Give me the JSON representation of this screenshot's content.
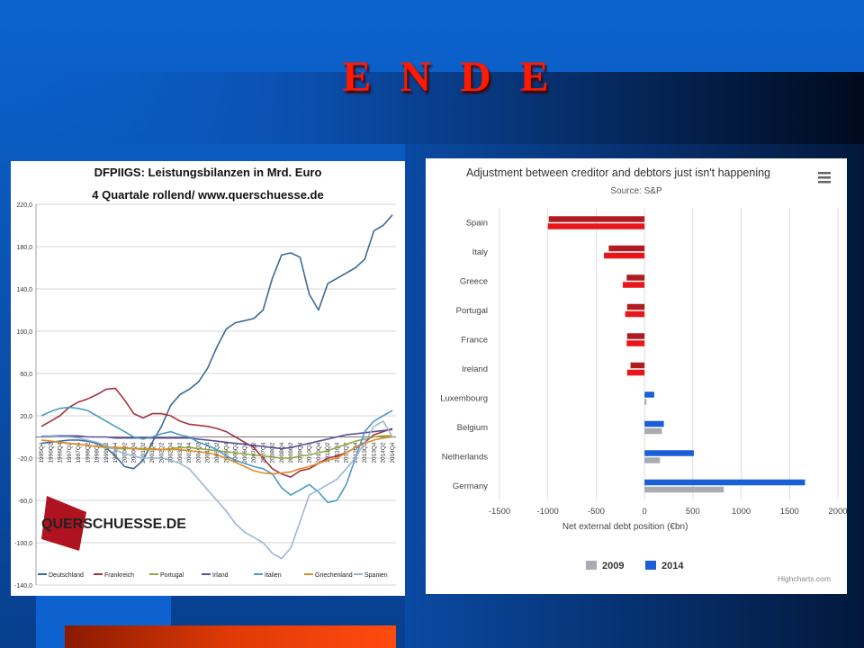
{
  "slide": {
    "title": "E N D E"
  },
  "colors": {
    "deutschland": "#3d6a93",
    "frankreich": "#a3333c",
    "portugal": "#94a843",
    "irland": "#5a4f9a",
    "italien": "#4a9bc0",
    "griechenland": "#e08a2c",
    "spanien": "#9cb6d6",
    "bar2009": "#a9abb4",
    "bar2014": "#1b5fd6",
    "creditor2009": "#b01b20",
    "creditor2014": "#e8161b"
  },
  "chart_data": [
    {
      "type": "line",
      "title": "DFPIIGS: Leistungsbilanzen in Mrd. Euro",
      "subtitle": "4 Quartale rollend/ www.querschuesse.de",
      "logo_text": "QUERSCHUESSE.DE",
      "xlabel": "",
      "ylabel": "",
      "ylim": [
        -140,
        220
      ],
      "yticks": [
        "220,0",
        "180,0",
        "140,0",
        "100,0",
        "60,0",
        "20,0",
        "-20,0",
        "-60,0",
        "-100,0",
        "-140,0"
      ],
      "x_start": "1995Q4",
      "x": [
        "1995Q4",
        "1996Q2",
        "1996Q4",
        "1997Q2",
        "1997Q4",
        "1998Q2",
        "1998Q4",
        "1999Q2",
        "1999Q4",
        "2000Q2",
        "2000Q4",
        "2001Q2",
        "2001Q4",
        "2002Q2",
        "2002Q4",
        "2003Q2",
        "2003Q4",
        "2004Q2",
        "2004Q4",
        "2005Q2",
        "2005Q4",
        "2006Q2",
        "2006Q4",
        "2007Q2",
        "2007Q4",
        "2008Q2",
        "2008Q4",
        "2009Q2",
        "2009Q4",
        "2010Q2",
        "2010Q4",
        "2011Q2",
        "2011Q4",
        "2012Q2",
        "2012Q4",
        "2013Q2",
        "2013Q4",
        "2014Q2",
        "2014Q4"
      ],
      "legend_position": "bottom",
      "series": [
        {
          "name": "Deutschland",
          "values": [
            -6,
            -5,
            -4,
            -3,
            -3,
            -4,
            -6,
            -10,
            -18,
            -28,
            -30,
            -22,
            -5,
            10,
            30,
            40,
            45,
            52,
            65,
            85,
            102,
            108,
            110,
            112,
            120,
            150,
            172,
            174,
            170,
            135,
            120,
            145,
            150,
            155,
            160,
            168,
            195,
            200,
            210
          ]
        },
        {
          "name": "Frankreich",
          "values": [
            10,
            15,
            20,
            28,
            33,
            36,
            40,
            45,
            46,
            35,
            22,
            18,
            22,
            22,
            20,
            15,
            12,
            11,
            10,
            8,
            5,
            0,
            -5,
            -10,
            -20,
            -30,
            -35,
            -38,
            -32,
            -30,
            -25,
            -20,
            -18,
            -15,
            -10,
            -5,
            2,
            5,
            8
          ]
        },
        {
          "name": "Portugal",
          "values": [
            -3,
            -4,
            -5,
            -6,
            -7,
            -8,
            -9,
            -10,
            -11,
            -11,
            -11,
            -12,
            -12,
            -12,
            -11,
            -10,
            -10,
            -11,
            -12,
            -13,
            -14,
            -15,
            -16,
            -17,
            -18,
            -19,
            -20,
            -20,
            -18,
            -17,
            -15,
            -13,
            -10,
            -7,
            -4,
            -2,
            0,
            1,
            1
          ]
        },
        {
          "name": "Irland",
          "values": [
            0,
            1,
            1,
            1,
            1,
            0,
            0,
            0,
            -1,
            -1,
            -1,
            -1,
            -1,
            -1,
            -1,
            -1,
            -1,
            -2,
            -3,
            -4,
            -5,
            -6,
            -7,
            -8,
            -9,
            -10,
            -11,
            -10,
            -8,
            -6,
            -4,
            -2,
            0,
            2,
            3,
            4,
            5,
            6,
            7
          ]
        },
        {
          "name": "Italien",
          "values": [
            20,
            24,
            27,
            28,
            27,
            25,
            20,
            15,
            10,
            5,
            0,
            -2,
            0,
            3,
            5,
            2,
            0,
            -5,
            -8,
            -12,
            -18,
            -22,
            -25,
            -28,
            -30,
            -35,
            -48,
            -55,
            -50,
            -45,
            -52,
            -62,
            -60,
            -45,
            -20,
            5,
            15,
            20,
            25
          ]
        },
        {
          "name": "Griechenland",
          "values": [
            -3,
            -4,
            -5,
            -6,
            -7,
            -8,
            -9,
            -9,
            -10,
            -10,
            -11,
            -11,
            -11,
            -12,
            -12,
            -12,
            -13,
            -14,
            -15,
            -17,
            -20,
            -24,
            -28,
            -32,
            -34,
            -35,
            -34,
            -33,
            -30,
            -28,
            -25,
            -22,
            -20,
            -15,
            -10,
            -6,
            -3,
            -1,
            0
          ]
        },
        {
          "name": "Spanien",
          "values": [
            1,
            1,
            0,
            0,
            -1,
            -3,
            -5,
            -8,
            -12,
            -16,
            -18,
            -20,
            -20,
            -20,
            -22,
            -25,
            -30,
            -40,
            -50,
            -60,
            -70,
            -82,
            -90,
            -95,
            -100,
            -110,
            -115,
            -105,
            -80,
            -55,
            -50,
            -45,
            -40,
            -30,
            -20,
            -5,
            10,
            15,
            0
          ]
        }
      ]
    },
    {
      "type": "bar",
      "orientation": "horizontal",
      "title": "Adjustment between creditor and debtors just isn't happening",
      "subtitle": "Source: S&P",
      "menu_icon": "hamburger-icon",
      "xlabel": "Net external debt position (€bn)",
      "ylabel": "",
      "xlim": [
        -1500,
        2000
      ],
      "xticks": [
        "-1500",
        "-1000",
        "-500",
        "0",
        "500",
        "1000",
        "1500",
        "2000"
      ],
      "categories": [
        "Spain",
        "Italy",
        "Greece",
        "Portugal",
        "France",
        "Ireland",
        "Luxembourg",
        "Belgium",
        "Netherlands",
        "Germany"
      ],
      "series": [
        {
          "name": "2009",
          "values": [
            -1000,
            -420,
            -225,
            -200,
            -185,
            -180,
            20,
            180,
            160,
            820
          ]
        },
        {
          "name": "2014",
          "values": [
            -990,
            -370,
            -185,
            -180,
            -180,
            -145,
            100,
            200,
            510,
            1660
          ]
        }
      ],
      "legend_position": "bottom",
      "credits": "Highcharts.com"
    }
  ]
}
